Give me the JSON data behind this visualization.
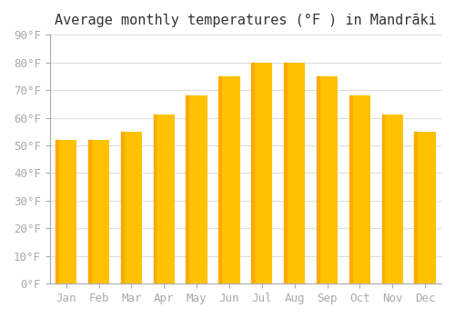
{
  "title": "Average monthly temperatures (°F ) in Mandrāki",
  "months": [
    "Jan",
    "Feb",
    "Mar",
    "Apr",
    "May",
    "Jun",
    "Jul",
    "Aug",
    "Sep",
    "Oct",
    "Nov",
    "Dec"
  ],
  "values": [
    52,
    52,
    55,
    61,
    68,
    75,
    80,
    80,
    75,
    68,
    61,
    55
  ],
  "bar_color_top": "#FFC200",
  "bar_color_bottom": "#FFAA00",
  "background_color": "#ffffff",
  "grid_color": "#dddddd",
  "tick_color": "#aaaaaa",
  "ylim": [
    0,
    90
  ],
  "yticks": [
    0,
    10,
    20,
    30,
    40,
    50,
    60,
    70,
    80,
    90
  ],
  "title_fontsize": 11,
  "tick_fontsize": 9,
  "font_family": "monospace"
}
